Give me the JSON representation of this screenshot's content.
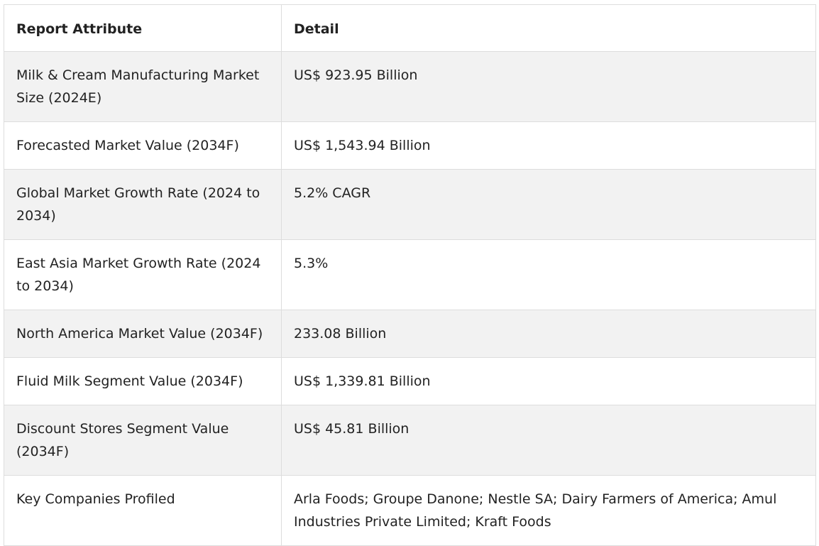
{
  "table": {
    "headers": [
      "Report Attribute",
      "Detail"
    ],
    "rows": [
      [
        "Milk & Cream Manufacturing Market Size (2024E)",
        "US$ 923.95 Billion"
      ],
      [
        "Forecasted Market Value (2034F)",
        "US$ 1,543.94 Billion"
      ],
      [
        "Global Market Growth Rate (2024 to 2034)",
        "5.2% CAGR"
      ],
      [
        "East Asia Market Growth Rate (2024 to 2034)",
        "5.3%"
      ],
      [
        "North America Market Value (2034F)",
        "233.08 Billion"
      ],
      [
        "Fluid Milk Segment Value (2034F)",
        "US$ 1,339.81 Billion"
      ],
      [
        "Discount Stores Segment Value (2034F)",
        "US$ 45.81 Billion"
      ],
      [
        "Key Companies Profiled",
        "Arla Foods; Groupe Danone; Nestle SA; Dairy Farmers of America; Amul Industries Private Limited; Kraft Foods"
      ]
    ]
  }
}
